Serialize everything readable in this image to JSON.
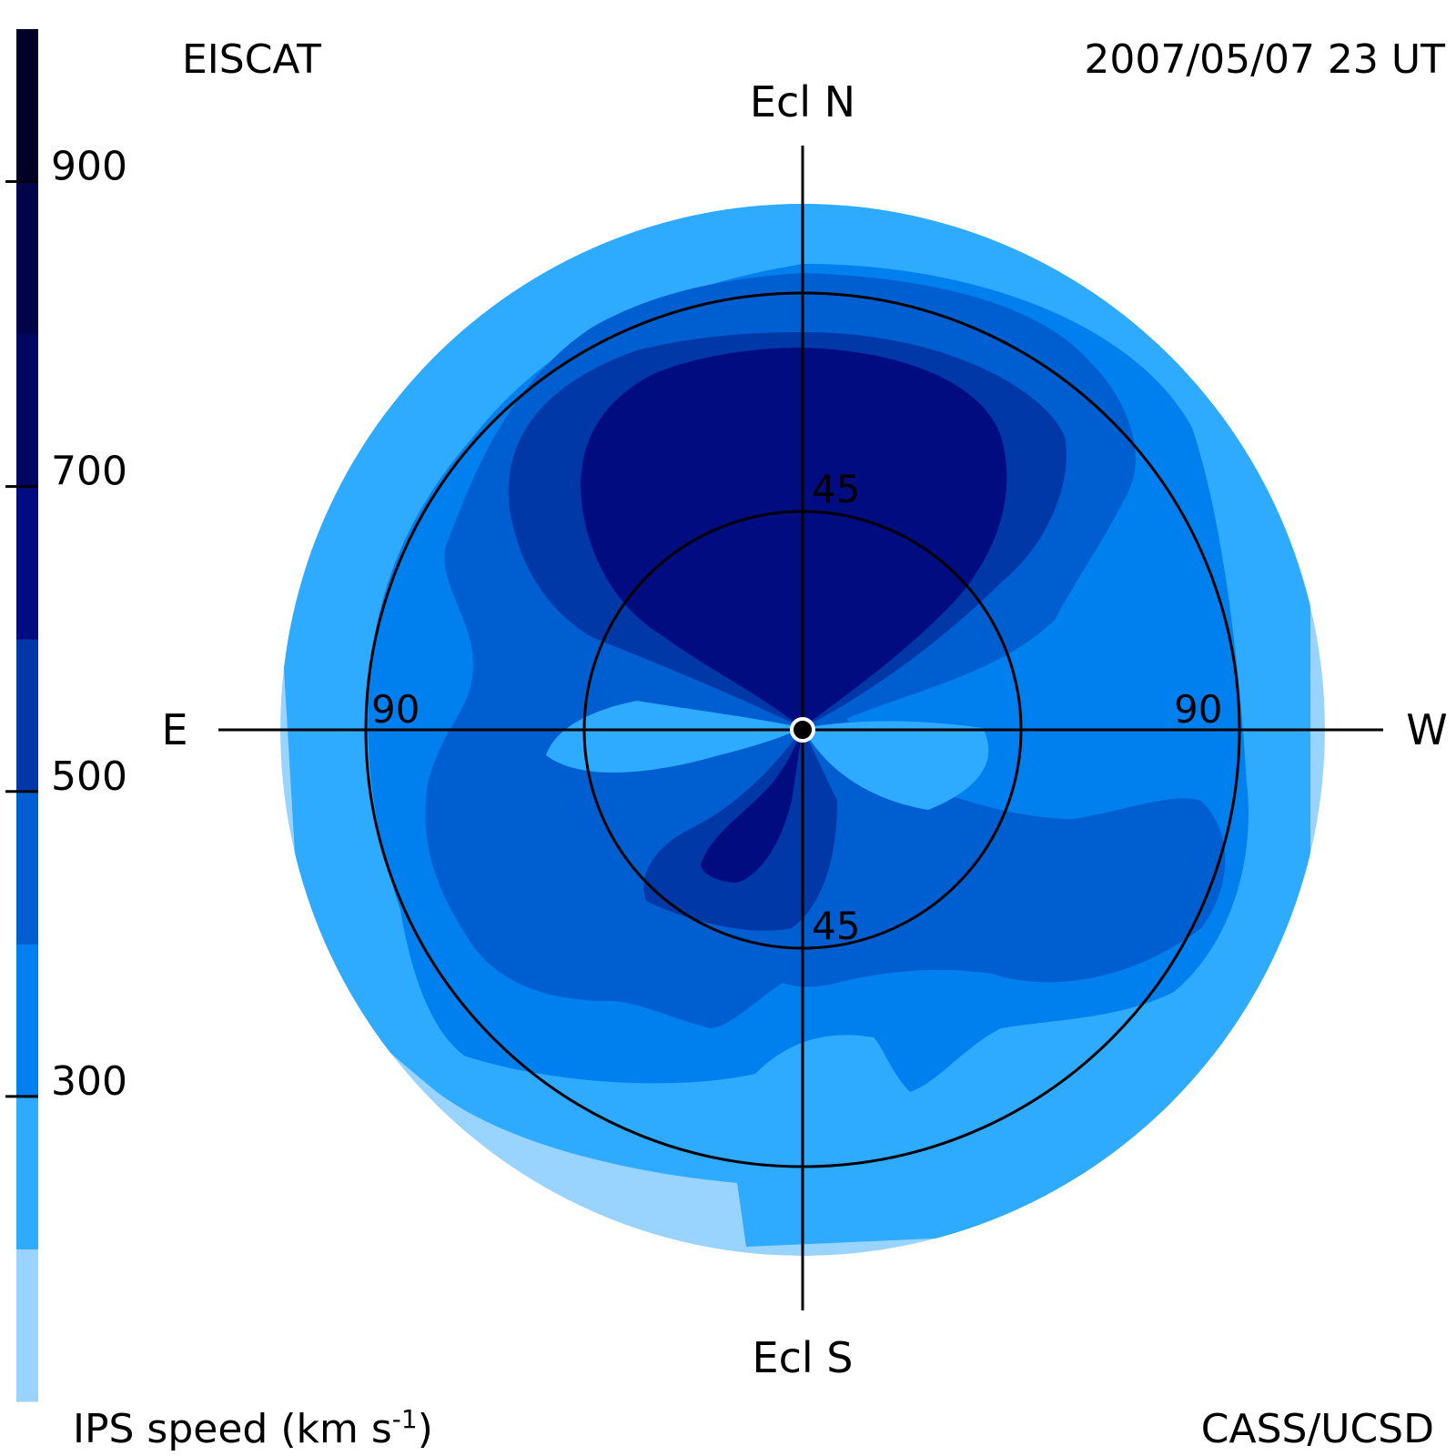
{
  "header": {
    "instrument": "EISCAT",
    "timestamp": "2007/05/07 23 UT",
    "credit": "CASS/UCSD"
  },
  "chart_data": {
    "type": "heatmap",
    "projection": "polar sky map centred on the Sun (fisheye)",
    "title": "",
    "direction_labels": {
      "north": "Ecl N",
      "south": "Ecl S",
      "east": "E",
      "west": "W"
    },
    "elongation_rings_deg": [
      {
        "value": 45,
        "label": "45"
      },
      {
        "value": 90,
        "label": "90"
      }
    ],
    "map_extent_deg": 120,
    "colorbar": {
      "label": "IPS speed (km s",
      "label_sup": "-1",
      "label_tail": ")",
      "range": [
        100,
        1000
      ],
      "ticks": [
        {
          "value": 300,
          "label": "300"
        },
        {
          "value": 500,
          "label": "500"
        },
        {
          "value": 700,
          "label": "700"
        },
        {
          "value": 900,
          "label": "900"
        }
      ],
      "levels": [
        {
          "from": 100,
          "to": 200,
          "color": "#99d3ff"
        },
        {
          "from": 200,
          "to": 300,
          "color": "#2eaaff"
        },
        {
          "from": 300,
          "to": 400,
          "color": "#0080ee"
        },
        {
          "from": 400,
          "to": 500,
          "color": "#005fd0"
        },
        {
          "from": 500,
          "to": 600,
          "color": "#0038a8"
        },
        {
          "from": 600,
          "to": 700,
          "color": "#000c80"
        },
        {
          "from": 700,
          "to": 800,
          "color": "#000763"
        },
        {
          "from": 800,
          "to": 900,
          "color": "#00054a"
        },
        {
          "from": 900,
          "to": 1000,
          "color": "#000124"
        }
      ]
    },
    "speed_regions": [
      {
        "level": 200,
        "description": "outer south-east fringe"
      },
      {
        "level": 300,
        "description": "outer ring of map"
      },
      {
        "level": 400,
        "description": "mid ring, southern sector"
      },
      {
        "level": 500,
        "description": "inner band, north and south lobes"
      },
      {
        "level": 600,
        "description": "northern high-speed lobe shell"
      },
      {
        "level": 700,
        "description": "northern high-speed core and small southern core"
      }
    ]
  }
}
